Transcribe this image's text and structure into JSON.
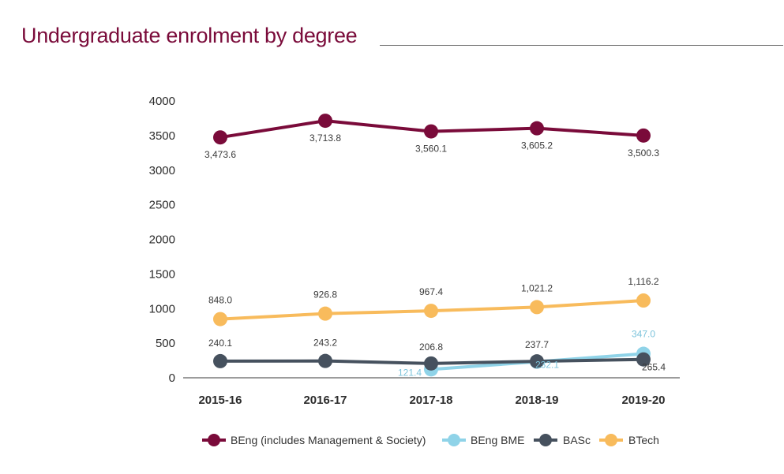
{
  "chart_data": {
    "type": "line",
    "title": "Undergraduate enrolment by degree",
    "xlabel": "",
    "ylabel": "",
    "categories": [
      "2015-16",
      "2016-17",
      "2017-18",
      "2018-19",
      "2019-20"
    ],
    "ylim": [
      0,
      4000
    ],
    "yticks": [
      0,
      500,
      1000,
      1500,
      2000,
      2500,
      3000,
      3500,
      4000
    ],
    "grid": false,
    "legend_position": "bottom",
    "series": [
      {
        "name": "BEng (includes Management & Society)",
        "color": "#7a0b3a",
        "values": [
          3473.6,
          3713.8,
          3560.1,
          3605.2,
          3500.3
        ],
        "labels": [
          "3,473.6",
          "3,713.8",
          "3,560.1",
          "3,605.2",
          "3,500.3"
        ],
        "label_position": "below",
        "label_color": "#3a3a3a"
      },
      {
        "name": "BEng BME",
        "color": "#8fd3e8",
        "values": [
          null,
          null,
          121.4,
          232.1,
          347.0
        ],
        "labels": [
          null,
          null,
          "121.4",
          "232.1",
          "347.0"
        ],
        "label_position": "custom",
        "label_color": "#7cc3db"
      },
      {
        "name": "BASc",
        "color": "#46515e",
        "values": [
          240.1,
          243.2,
          206.8,
          237.7,
          265.4
        ],
        "labels": [
          "240.1",
          "243.2",
          "206.8",
          "237.7",
          "265.4"
        ],
        "label_position": "custom",
        "label_color": "#3a3a3a"
      },
      {
        "name": "BTech",
        "color": "#f8bb5c",
        "values": [
          848.0,
          926.8,
          967.4,
          1021.2,
          1116.2
        ],
        "labels": [
          "848.0",
          "926.8",
          "967.4",
          "1,021.2",
          "1,116.2"
        ],
        "label_position": "above",
        "label_color": "#3a3a3a"
      }
    ]
  }
}
